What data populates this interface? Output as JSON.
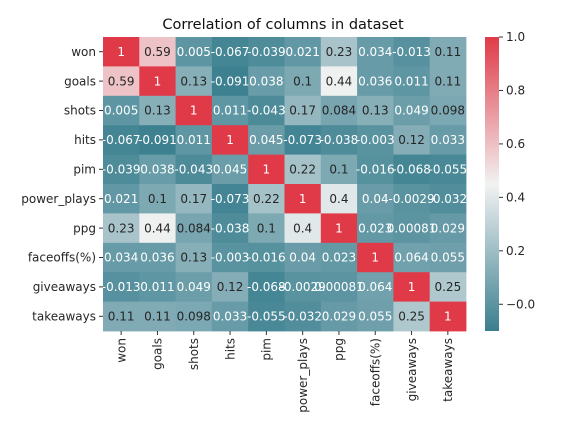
{
  "chart_data": {
    "type": "heatmap",
    "title": "Correlation of columns in dataset",
    "rows": [
      "won",
      "goals",
      "shots",
      "hits",
      "pim",
      "power_plays",
      "ppg",
      "faceoffs(%)",
      "giveaways",
      "takeaways"
    ],
    "columns": [
      "won",
      "goals",
      "shots",
      "hits",
      "pim",
      "power_plays",
      "ppg",
      "faceoffs(%)",
      "giveaways",
      "takeaways"
    ],
    "values": [
      [
        1,
        0.59,
        0.005,
        -0.067,
        -0.039,
        0.021,
        0.23,
        0.034,
        -0.013,
        0.11
      ],
      [
        0.59,
        1,
        0.13,
        -0.091,
        0.038,
        0.1,
        0.44,
        0.036,
        0.011,
        0.11
      ],
      [
        0.005,
        0.13,
        1,
        0.011,
        -0.043,
        0.17,
        0.084,
        0.13,
        0.049,
        0.098
      ],
      [
        -0.067,
        -0.091,
        0.011,
        1,
        0.045,
        -0.073,
        -0.038,
        -0.003,
        0.12,
        0.033
      ],
      [
        -0.039,
        0.038,
        -0.043,
        0.045,
        1,
        0.22,
        0.1,
        -0.016,
        -0.068,
        -0.055
      ],
      [
        0.021,
        0.1,
        0.17,
        -0.073,
        0.22,
        1,
        0.4,
        0.04,
        -0.0029,
        -0.032
      ],
      [
        0.23,
        0.44,
        0.084,
        -0.038,
        0.1,
        0.4,
        1,
        0.023,
        0.00081,
        0.029
      ],
      [
        0.034,
        0.036,
        0.13,
        -0.003,
        -0.016,
        0.04,
        0.023,
        1,
        0.064,
        0.055
      ],
      [
        -0.013,
        0.011,
        0.049,
        0.12,
        -0.068,
        -0.0029,
        0.00081,
        0.064,
        1,
        0.25
      ],
      [
        0.11,
        0.11,
        0.098,
        0.033,
        -0.055,
        -0.032,
        0.029,
        0.055,
        0.25,
        1
      ]
    ],
    "labels": [
      [
        "1",
        "0.59",
        "0.005",
        "-0.067",
        "-0.039",
        "0.021",
        "0.23",
        "0.034",
        "-0.013",
        "0.11"
      ],
      [
        "0.59",
        "1",
        "0.13",
        "-0.091",
        "0.038",
        "0.1",
        "0.44",
        "0.036",
        "0.011",
        "0.11"
      ],
      [
        "0.005",
        "0.13",
        "1",
        "0.011",
        "-0.043",
        "0.17",
        "0.084",
        "0.13",
        "0.049",
        "0.098"
      ],
      [
        "-0.067",
        "-0.091",
        "0.011",
        "1",
        "0.045",
        "-0.073",
        "-0.038",
        "-0.003",
        "0.12",
        "0.033"
      ],
      [
        "-0.039",
        "0.038",
        "-0.043",
        "0.045",
        "1",
        "0.22",
        "0.1",
        "-0.016",
        "-0.068",
        "-0.055"
      ],
      [
        "0.021",
        "0.1",
        "0.17",
        "-0.073",
        "0.22",
        "1",
        "0.4",
        "0.04",
        "-0.0029",
        "-0.032"
      ],
      [
        "0.23",
        "0.44",
        "0.084",
        "-0.038",
        "0.1",
        "0.4",
        "1",
        "0.023",
        "0.00081",
        "0.029"
      ],
      [
        "0.034",
        "0.036",
        "0.13",
        "-0.003",
        "-0.016",
        "0.04",
        "0.023",
        "1",
        "0.064",
        "0.055"
      ],
      [
        "-0.013",
        "0.011",
        "0.049",
        "0.12",
        "-0.068",
        "-0.0029",
        "0.00081",
        "0.064",
        "1",
        "0.25"
      ],
      [
        "0.11",
        "0.11",
        "0.098",
        "0.033",
        "-0.055",
        "-0.032",
        "0.029",
        "0.055",
        "0.25",
        "1"
      ]
    ],
    "colorbar": {
      "range": [
        -0.1,
        1.0
      ],
      "ticks": [
        -0.0,
        0.2,
        0.4,
        0.6,
        0.8,
        1.0
      ],
      "tick_labels": [
        "−0.0",
        "0.2",
        "0.4",
        "0.6",
        "0.8",
        "1.0"
      ],
      "placement": "right"
    },
    "colors": {
      "low": "#3a7f8f",
      "mid": "#f2f2f2",
      "high": "#e03a48",
      "text_dark": "#262626",
      "text_light": "#ffffff"
    },
    "grid": false,
    "legend": "none"
  }
}
